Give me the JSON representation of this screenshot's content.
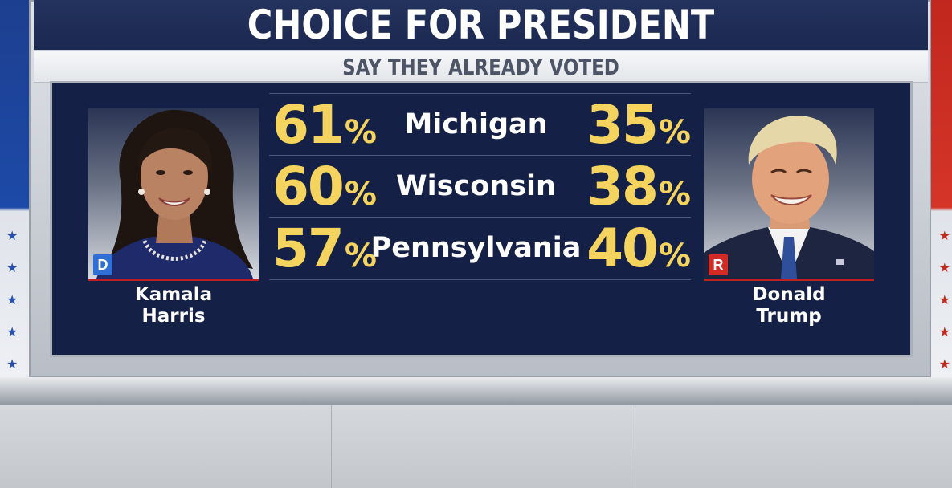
{
  "chart_data": {
    "type": "table",
    "title": "CHOICE FOR PRESIDENT",
    "subtitle": "SAY THEY ALREADY VOTED",
    "columns": [
      "Kamala Harris",
      "State",
      "Donald Trump"
    ],
    "rows": [
      {
        "state": "Michigan",
        "harris": 61,
        "trump": 35
      },
      {
        "state": "Wisconsin",
        "harris": 60,
        "trump": 38
      },
      {
        "state": "Pennsylvania",
        "harris": 57,
        "trump": 40
      }
    ],
    "unit": "%"
  },
  "candidates": {
    "left": {
      "first": "Kamala",
      "last": "Harris",
      "party_badge": "D",
      "party_color": "#2f6fd6"
    },
    "right": {
      "first": "Donald",
      "last": "Trump",
      "party_badge": "R",
      "party_color": "#d42a24"
    }
  },
  "colors": {
    "panel": "#142046",
    "percent_text": "#f4d35e",
    "state_text": "#ffffff",
    "title_bar": "#1b2850"
  }
}
